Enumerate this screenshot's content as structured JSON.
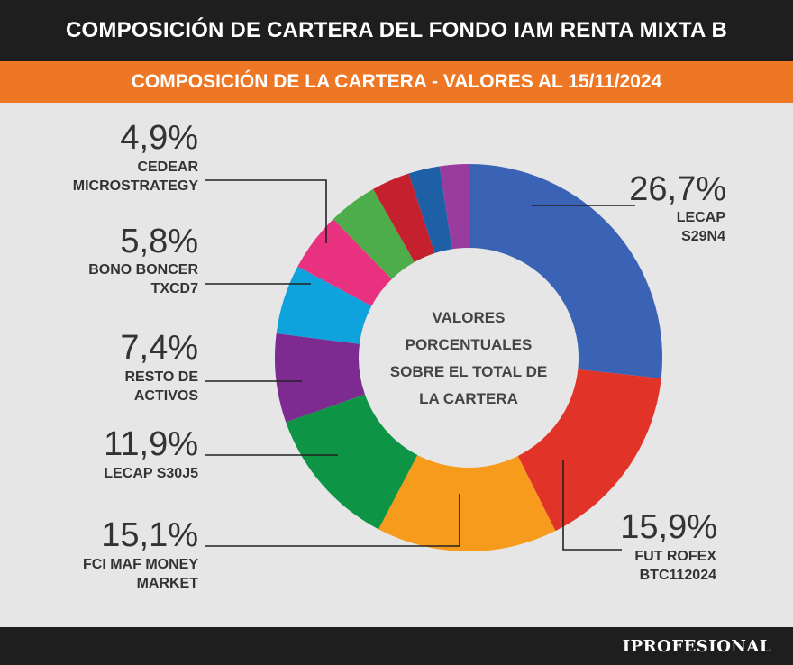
{
  "header": {
    "title": "COMPOSICIÓN DE CARTERA DEL FONDO IAM RENTA MIXTA B"
  },
  "subheader": {
    "title": "COMPOSICIÓN DE LA CARTERA - VALORES AL 15/11/2024"
  },
  "center_label": [
    "VALORES",
    "PORCENTUALES",
    "SOBRE EL TOTAL DE",
    "LA CARTERA"
  ],
  "brand": {
    "name": "IPROFESIONAL"
  },
  "chart_data": {
    "type": "pie",
    "donut": true,
    "title": "COMPOSICIÓN DE LA CARTERA - VALORES AL 15/11/2024",
    "unit": "%",
    "slices": [
      {
        "label": [
          "LECAP",
          "S29N4"
        ],
        "value": 26.7,
        "display": "26,7%",
        "color": "#3a62b5"
      },
      {
        "label": [
          "FUT ROFEX",
          "BTC112024"
        ],
        "value": 15.9,
        "display": "15,9%",
        "color": "#e13327"
      },
      {
        "label": [
          "FCI MAF MONEY",
          "MARKET"
        ],
        "value": 15.1,
        "display": "15,1%",
        "color": "#f79b1c"
      },
      {
        "label": [
          "LECAP S30J5"
        ],
        "value": 11.9,
        "display": "11,9%",
        "color": "#0d9444"
      },
      {
        "label": [
          "RESTO DE",
          "ACTIVOS"
        ],
        "value": 7.4,
        "display": "7,4%",
        "color": "#7e2b91"
      },
      {
        "label": [
          "BONO BONCER",
          "TXCD7"
        ],
        "value": 5.8,
        "display": "5,8%",
        "color": "#0ea3dc"
      },
      {
        "label": [
          "CEDEAR",
          "MICROSTRATEGY"
        ],
        "value": 4.9,
        "display": "4,9%",
        "color": "#e8317f"
      },
      {
        "label": [],
        "value": 4.1,
        "display": "",
        "color": "#4dad4a"
      },
      {
        "label": [],
        "value": 3.2,
        "display": "",
        "color": "#c4202e"
      },
      {
        "label": [],
        "value": 2.6,
        "display": "",
        "color": "#1d60a6"
      },
      {
        "label": [],
        "value": 2.4,
        "display": "",
        "color": "#9a3b9e"
      }
    ]
  }
}
